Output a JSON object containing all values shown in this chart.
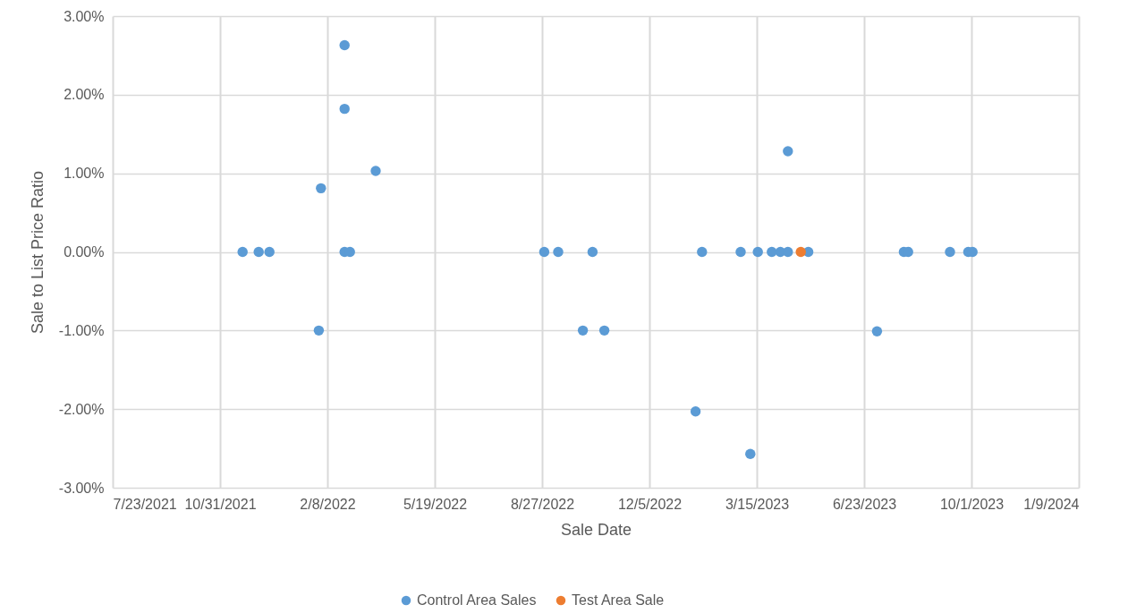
{
  "chart_data": {
    "type": "scatter",
    "xlabel": "Sale Date",
    "ylabel": "Sale to List Price Ratio",
    "xlim": [
      "2021-07-23",
      "2024-01-09"
    ],
    "xticks": [
      {
        "value": "2021-07-23",
        "label": "7/23/2021"
      },
      {
        "value": "2021-10-31",
        "label": "10/31/2021"
      },
      {
        "value": "2022-02-08",
        "label": "2/8/2022"
      },
      {
        "value": "2022-05-19",
        "label": "5/19/2022"
      },
      {
        "value": "2022-08-27",
        "label": "8/27/2022"
      },
      {
        "value": "2022-12-05",
        "label": "12/5/2022"
      },
      {
        "value": "2023-03-15",
        "label": "3/15/2023"
      },
      {
        "value": "2023-06-23",
        "label": "6/23/2023"
      },
      {
        "value": "2023-10-01",
        "label": "10/1/2023"
      },
      {
        "value": "2024-01-09",
        "label": "1/9/2024"
      }
    ],
    "ylim": [
      -3,
      3
    ],
    "yticks": [
      {
        "value": -3,
        "label": "-3.00%"
      },
      {
        "value": -2,
        "label": "-2.00%"
      },
      {
        "value": -1,
        "label": "-1.00%"
      },
      {
        "value": 0,
        "label": "0.00%"
      },
      {
        "value": 1,
        "label": "1.00%"
      },
      {
        "value": 2,
        "label": "2.00%"
      },
      {
        "value": 3,
        "label": "3.00%"
      }
    ],
    "grid": true,
    "legend": "bottom",
    "marker": "circle",
    "series": [
      {
        "name": "Control Area Sales",
        "color": "#5b9bd5",
        "x": [
          "2021-11-21",
          "2021-12-06",
          "2021-12-16",
          "2022-01-31",
          "2022-02-02",
          "2022-02-24",
          "2022-02-24",
          "2022-02-24",
          "2022-03-01",
          "2022-03-25",
          "2022-08-29",
          "2022-09-11",
          "2022-10-04",
          "2022-10-13",
          "2022-10-24",
          "2023-01-17",
          "2023-01-23",
          "2023-02-28",
          "2023-03-09",
          "2023-03-16",
          "2023-03-29",
          "2023-04-06",
          "2023-04-13",
          "2023-04-13",
          "2023-05-02",
          "2023-07-05",
          "2023-07-30",
          "2023-08-03",
          "2023-09-11",
          "2023-09-28",
          "2023-10-02"
        ],
        "values": [
          0,
          0,
          0,
          -1.0,
          0.81,
          2.63,
          1.82,
          0,
          0,
          1.03,
          0,
          0,
          -1.0,
          0,
          -1.0,
          -2.03,
          0,
          0,
          -2.57,
          0,
          0,
          0,
          0,
          1.28,
          0,
          -1.01,
          0,
          0,
          0,
          0,
          0
        ]
      },
      {
        "name": "Test Area Sale",
        "color": "#ed7d31",
        "x": [
          "2023-04-25"
        ],
        "values": [
          0
        ]
      }
    ]
  }
}
